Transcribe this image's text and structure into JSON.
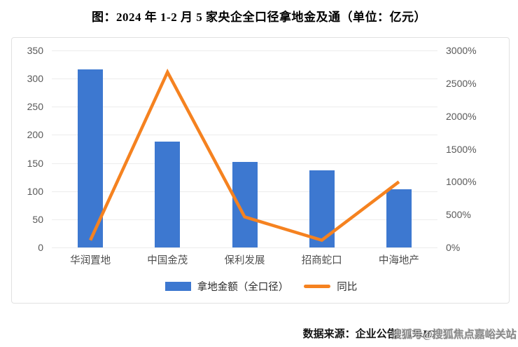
{
  "title": "图：2024 年 1-2 月 5 家央企全口径拿地金及通（单位：亿元）",
  "legend": {
    "bar_label": "拿地金额（全口径）",
    "line_label": "同比"
  },
  "footer": {
    "source": "数据来源：企业公告、CRIC",
    "watermark": "搜狐号@搜狐焦点嘉峪关站"
  },
  "colors": {
    "bar": "#3d78d0",
    "line": "#f58220",
    "grid": "#ececec",
    "axis_text": "#595959",
    "panel_border": "#e1e1e1"
  },
  "chart_data": {
    "type": "bar",
    "subtype": "combo-bar-line-dual-axis",
    "title": "图：2024 年 1-2 月 5 家央企全口径拿地金及通（单位：亿元）",
    "categories": [
      "华润置地",
      "中国金茂",
      "保利发展",
      "招商蛇口",
      "中海地产"
    ],
    "series": [
      {
        "name": "拿地金额（全口径）",
        "type": "bar",
        "axis": "left",
        "unit": "亿元",
        "values": [
          316,
          188,
          152,
          137,
          103
        ]
      },
      {
        "name": "同比",
        "type": "line",
        "axis": "right",
        "unit": "%",
        "values": [
          110,
          2670,
          465,
          110,
          1000
        ]
      }
    ],
    "left_axis": {
      "min": 0,
      "max": 350,
      "step": 50,
      "ticks": [
        "0",
        "50",
        "100",
        "150",
        "200",
        "250",
        "300",
        "350"
      ]
    },
    "right_axis": {
      "min": 0,
      "max": 3000,
      "step": 500,
      "ticks": [
        "0%",
        "500%",
        "1000%",
        "1500%",
        "2000%",
        "2500%",
        "3000%"
      ]
    },
    "grid": "horizontal-left-axis",
    "legend_position": "bottom"
  }
}
